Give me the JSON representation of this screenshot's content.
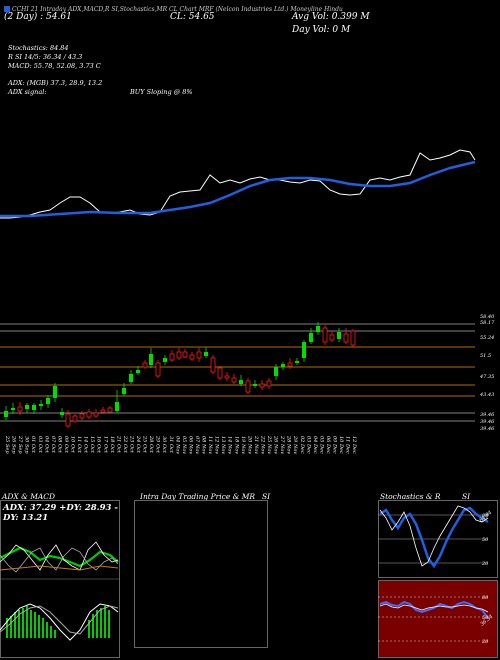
{
  "header": {
    "top_line": "CCHI 21 Intraday ADX,MACD,R SI,Stochastics,MR CL Chart MRF (Nelcon Industries Ltd.) Moneyline Hindu",
    "close_label": "CL: 54.65",
    "day_label": "(2 Day) : 54.61",
    "avg_vol": "Avg Vol: 0.399 M",
    "day_vol": "Day Vol: 0   M"
  },
  "indicators": {
    "stochastics": "Stochastics: 84.84",
    "rsi": "R SI 14/5: 36.34 / 43.3",
    "macd": "MACD: 55.78, 52.08, 3.73 C",
    "adx": "ADX: (MGB) 37.3, 28.9, 13.2",
    "adx_signal_label": "ADX signal:",
    "adx_signal_value": "BUY Sloping @ 8%"
  },
  "price_levels": [
    "58.40",
    "58.17",
    "55.24",
    "51.5",
    "47.35",
    "43.43",
    "39.46",
    "39.46",
    "39.46"
  ],
  "date_labels": [
    "25 Sep",
    "26 Sep",
    "27 Sep",
    "30 Sep",
    "01 Oct",
    "03 Oct",
    "04 Oct",
    "07 Oct",
    "08 Oct",
    "09 Oct",
    "10 Oct",
    "11 Oct",
    "14 Oct",
    "15 Oct",
    "16 Oct",
    "17 Oct",
    "18 Oct",
    "21 Oct",
    "22 Oct",
    "23 Oct",
    "24 Oct",
    "25 Oct",
    "28 Oct",
    "29 Oct",
    "30 Oct",
    "31 Oct",
    "04 Nov",
    "05 Nov",
    "06 Nov",
    "07 Nov",
    "08 Nov",
    "11 Nov",
    "12 Nov",
    "13 Nov",
    "14 Nov",
    "18 Nov",
    "19 Nov",
    "20 Nov",
    "21 Nov",
    "22 Nov",
    "25 Nov",
    "26 Nov",
    "27 Nov",
    "28 Nov",
    "29 Nov",
    "02 Dec",
    "03 Dec",
    "04 Dec",
    "05 Dec",
    "06 Dec",
    "09 Dec",
    "10 Dec",
    "11 Dec",
    "12 Dec"
  ],
  "adx_panel": {
    "title": "ADX  & MACD",
    "readout": "ADX: 37.29 +DY: 28.93 -DY: 13.21"
  },
  "intraday_panel": {
    "title": "Intra  Day Trading Price  & MR",
    "title_right": "SI"
  },
  "stoch_panel": {
    "title": "Stochastics & R",
    "title_right": "SI",
    "upper_labels": [
      "80",
      "50",
      "20"
    ],
    "upper_right_value": "84.84",
    "lower_labels": [
      "80",
      "50",
      "20"
    ],
    "lower_right_value": "36.34"
  },
  "colors": {
    "background": "#000000",
    "ma_line": "#1f5fe0",
    "up_candle": "#00dd00",
    "down_candle": "#ff1a1a",
    "level_line": "#b36b00",
    "adx_green": "#00cc00",
    "rsi_panel_bg": "#7a0000"
  },
  "legend_icon": "blue-square-icon"
}
